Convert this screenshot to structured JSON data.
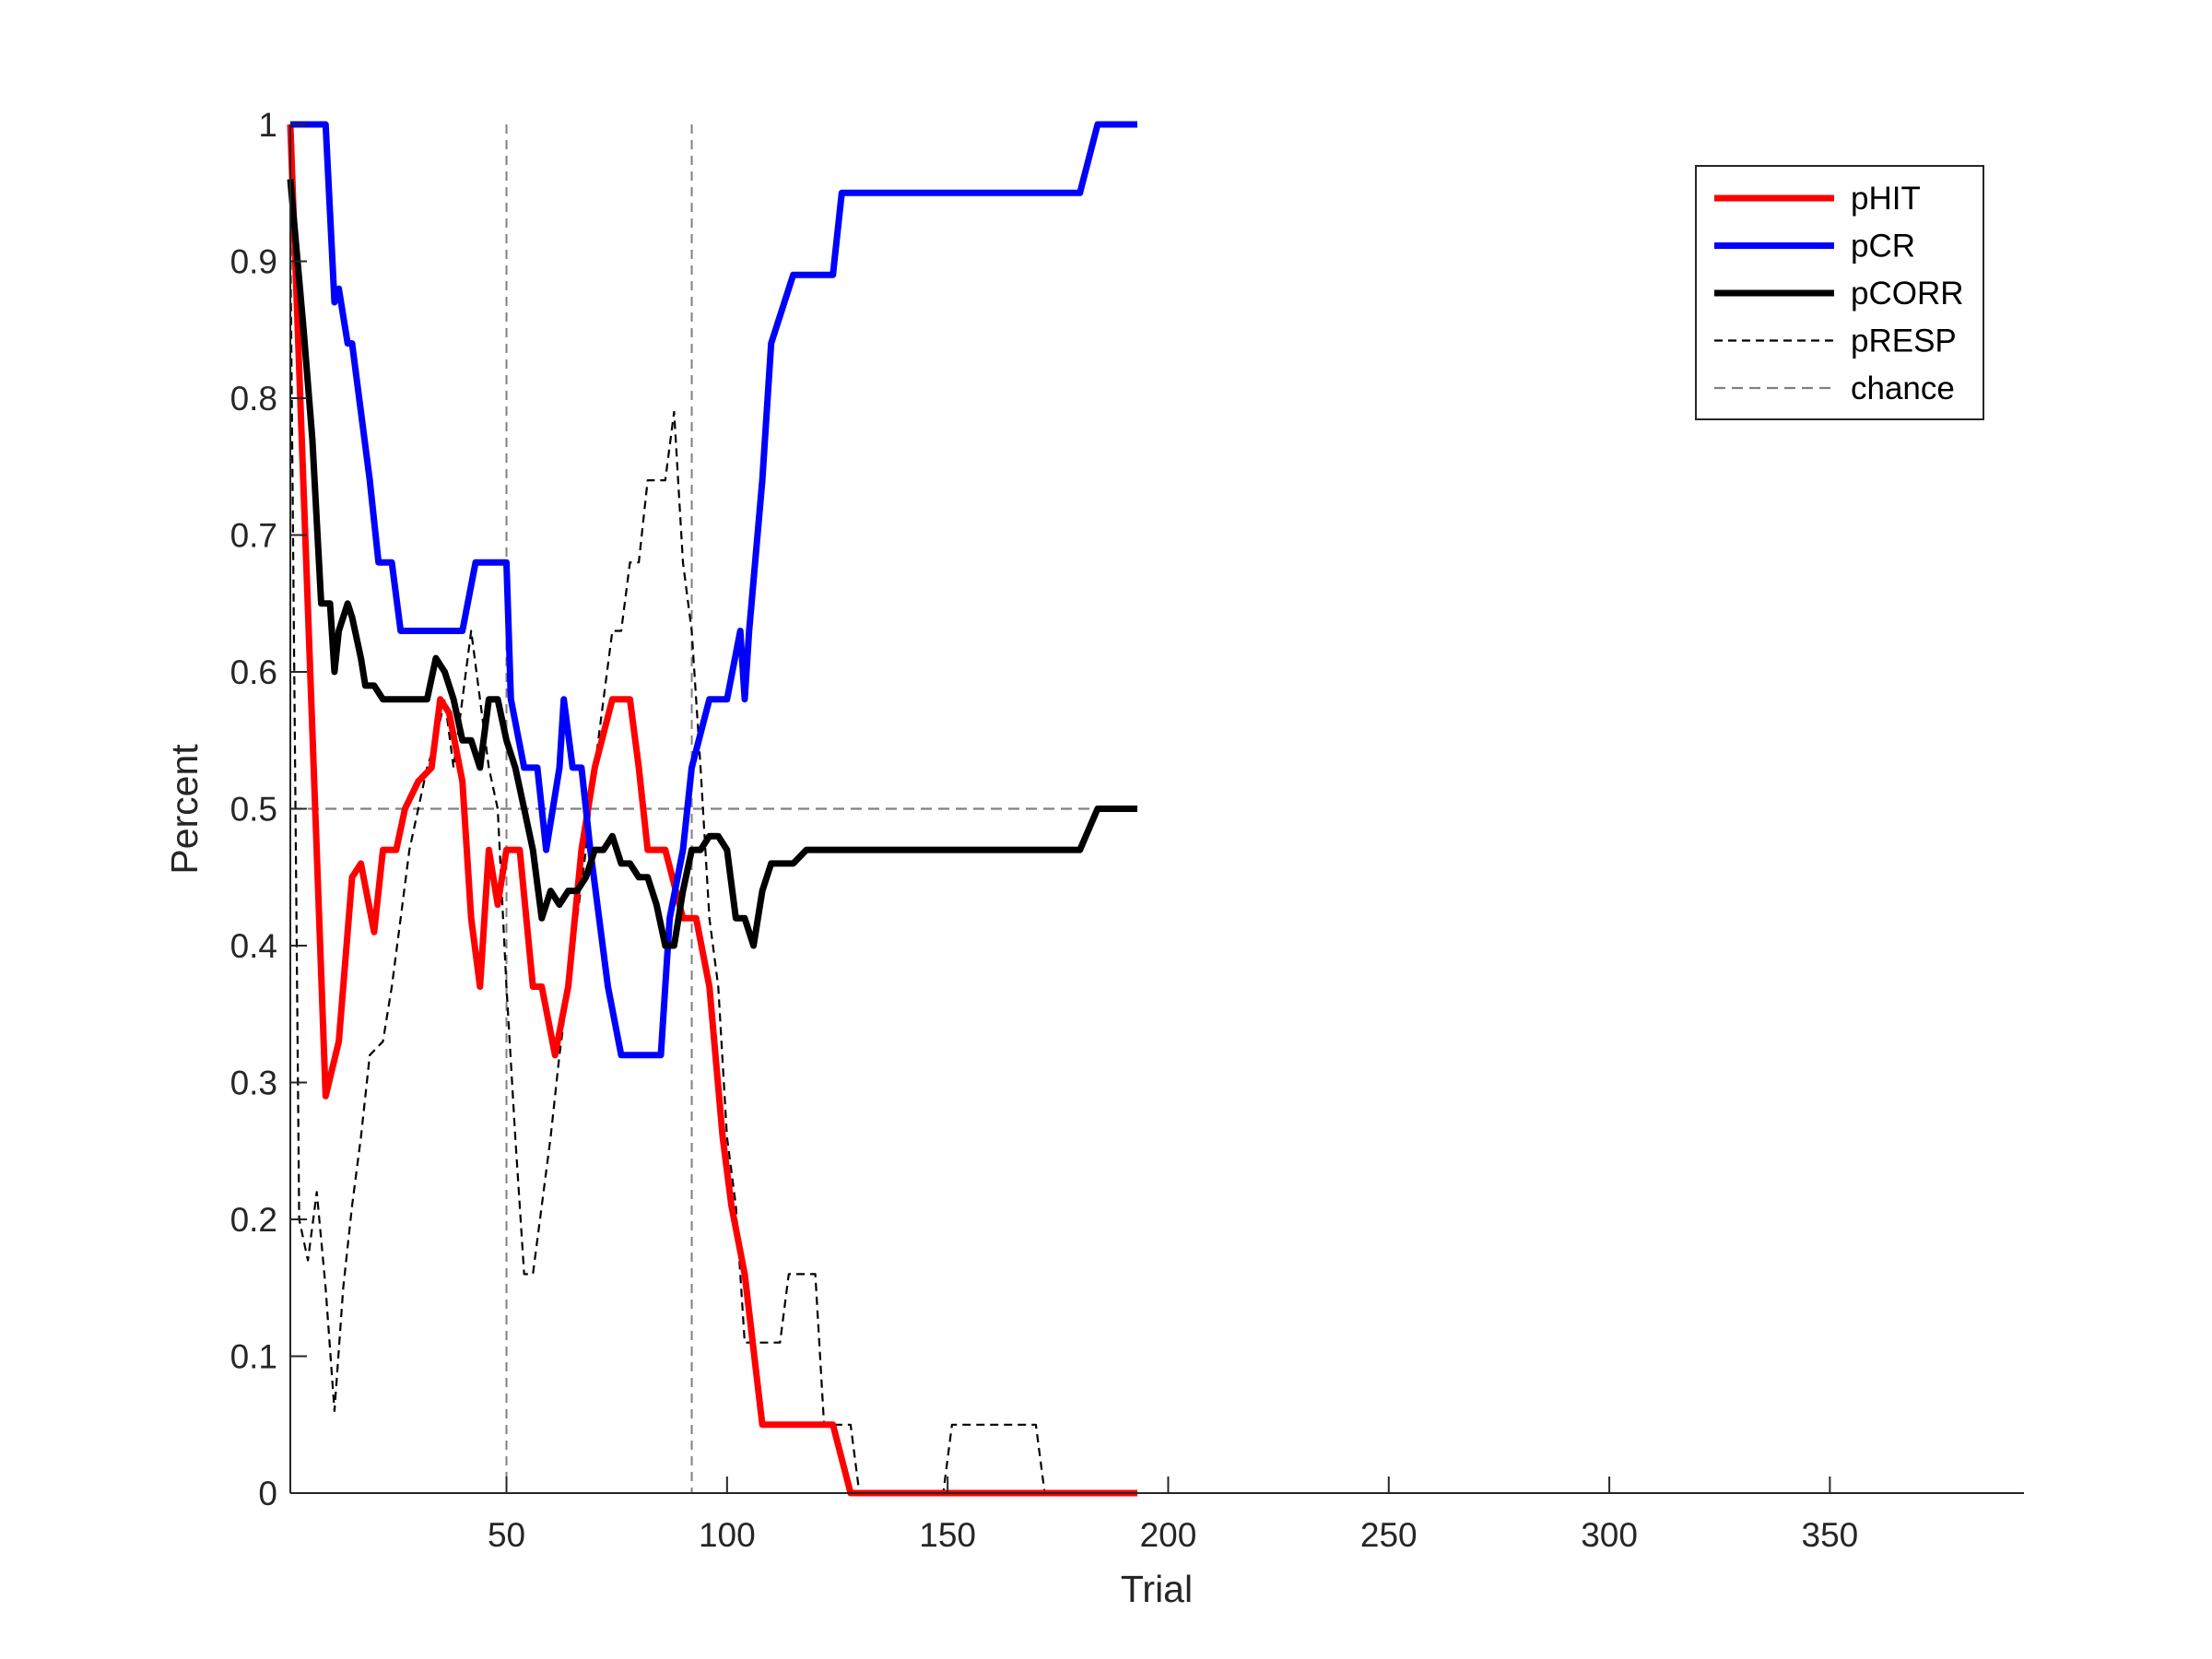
{
  "chart_data": {
    "type": "line",
    "xlabel": "Trial",
    "ylabel": "Percent",
    "xlim": [
      1,
      394
    ],
    "ylim": [
      0,
      1
    ],
    "xticks": [
      50,
      100,
      150,
      200,
      250,
      300,
      350
    ],
    "xtick_labels": [
      "50",
      "100",
      "150",
      "200",
      "250",
      "300",
      "350"
    ],
    "yticks": [
      0,
      0.1,
      0.2,
      0.3,
      0.4,
      0.5,
      0.6,
      0.7,
      0.8,
      0.9,
      1
    ],
    "ytick_labels": [
      "0",
      "0.1",
      "0.2",
      "0.3",
      "0.4",
      "0.5",
      "0.6",
      "0.7",
      "0.8",
      "0.9",
      "1"
    ],
    "grid": false,
    "legend_position": "top-right",
    "vlines": [
      50,
      92
    ],
    "series": [
      {
        "name": "pHIT",
        "color": "#ff0000",
        "style": "solid",
        "x": [
          1,
          9,
          12,
          15,
          17,
          20,
          22,
          25,
          27,
          30,
          33,
          35,
          37,
          40,
          42,
          44,
          46,
          48,
          50,
          53,
          56,
          58,
          61,
          64,
          67,
          70,
          74,
          76,
          78,
          80,
          82,
          84,
          86,
          90,
          93,
          96,
          99,
          101,
          104,
          108,
          112,
          114,
          118,
          120,
          124,
          128,
          132,
          140,
          150,
          160,
          170,
          180,
          193
        ],
        "y": [
          1,
          0.29,
          0.33,
          0.45,
          0.46,
          0.41,
          0.47,
          0.47,
          0.5,
          0.52,
          0.53,
          0.58,
          0.57,
          0.52,
          0.42,
          0.37,
          0.47,
          0.43,
          0.47,
          0.47,
          0.37,
          0.37,
          0.32,
          0.37,
          0.47,
          0.53,
          0.58,
          0.58,
          0.58,
          0.53,
          0.47,
          0.47,
          0.47,
          0.42,
          0.42,
          0.37,
          0.26,
          0.21,
          0.16,
          0.05,
          0.05,
          0.05,
          0.05,
          0.05,
          0.05,
          0.0,
          0.0,
          0.0,
          0.0,
          0.0,
          0.0,
          0.0,
          0.0
        ]
      },
      {
        "name": "pCR",
        "color": "#0000ff",
        "style": "solid",
        "x": [
          1,
          9,
          11,
          12,
          14,
          15,
          17,
          19,
          21,
          24,
          26,
          28,
          40,
          43,
          50,
          51,
          54,
          57,
          59,
          62,
          63,
          65,
          67,
          69,
          73,
          76,
          78,
          80,
          85,
          87,
          90,
          92,
          96,
          100,
          103,
          104,
          105,
          108,
          110,
          115,
          118,
          120,
          124,
          126,
          130,
          180,
          184,
          193
        ],
        "y": [
          1,
          1,
          0.87,
          0.88,
          0.84,
          0.84,
          0.79,
          0.74,
          0.68,
          0.68,
          0.63,
          0.63,
          0.63,
          0.68,
          0.68,
          0.58,
          0.53,
          0.53,
          0.47,
          0.53,
          0.58,
          0.53,
          0.53,
          0.47,
          0.37,
          0.32,
          0.32,
          0.32,
          0.32,
          0.42,
          0.47,
          0.53,
          0.58,
          0.58,
          0.63,
          0.58,
          0.63,
          0.74,
          0.84,
          0.89,
          0.89,
          0.89,
          0.89,
          0.95,
          0.95,
          0.95,
          1,
          1
        ]
      },
      {
        "name": "pCORR",
        "color": "#000000",
        "style": "solid",
        "x": [
          1,
          4,
          6,
          8,
          10,
          11,
          12,
          14,
          15,
          17,
          18,
          20,
          22,
          24,
          26,
          28,
          30,
          32,
          34,
          36,
          38,
          40,
          42,
          44,
          46,
          48,
          50,
          52,
          54,
          56,
          58,
          60,
          62,
          64,
          66,
          68,
          70,
          72,
          74,
          76,
          78,
          80,
          82,
          84,
          86,
          88,
          90,
          92,
          94,
          96,
          98,
          100,
          102,
          104,
          106,
          108,
          110,
          112,
          115,
          118,
          125,
          127,
          130,
          140,
          150,
          160,
          170,
          180,
          184,
          193
        ],
        "y": [
          0.96,
          0.85,
          0.77,
          0.65,
          0.65,
          0.6,
          0.63,
          0.65,
          0.64,
          0.61,
          0.59,
          0.59,
          0.58,
          0.58,
          0.58,
          0.58,
          0.58,
          0.58,
          0.61,
          0.6,
          0.58,
          0.55,
          0.55,
          0.53,
          0.58,
          0.58,
          0.55,
          0.53,
          0.5,
          0.47,
          0.42,
          0.44,
          0.43,
          0.44,
          0.44,
          0.45,
          0.47,
          0.47,
          0.48,
          0.46,
          0.46,
          0.45,
          0.45,
          0.43,
          0.4,
          0.4,
          0.44,
          0.47,
          0.47,
          0.48,
          0.48,
          0.47,
          0.42,
          0.42,
          0.4,
          0.44,
          0.46,
          0.46,
          0.46,
          0.47,
          0.47,
          0.47,
          0.47,
          0.47,
          0.47,
          0.47,
          0.47,
          0.47,
          0.5,
          0.5
        ]
      },
      {
        "name": "pRESP",
        "color": "#000000",
        "style": "dashed",
        "x": [
          1,
          3,
          5,
          7,
          9,
          11,
          13,
          15,
          17,
          19,
          22,
          24,
          26,
          28,
          30,
          32,
          34,
          36,
          38,
          40,
          42,
          44,
          46,
          48,
          50,
          52,
          54,
          56,
          58,
          60,
          62,
          64,
          66,
          68,
          70,
          72,
          74,
          76,
          78,
          80,
          82,
          84,
          86,
          88,
          90,
          92,
          94,
          96,
          98,
          100,
          102,
          104,
          106,
          108,
          110,
          112,
          114,
          116,
          118,
          120,
          122,
          124,
          126,
          128,
          130,
          140,
          149,
          151,
          160,
          170,
          172,
          180,
          193
        ],
        "y": [
          0.92,
          0.2,
          0.17,
          0.22,
          0.15,
          0.06,
          0.15,
          0.21,
          0.26,
          0.32,
          0.33,
          0.37,
          0.42,
          0.47,
          0.5,
          0.53,
          0.55,
          0.58,
          0.53,
          0.58,
          0.63,
          0.58,
          0.53,
          0.5,
          0.37,
          0.26,
          0.16,
          0.16,
          0.21,
          0.26,
          0.32,
          0.37,
          0.42,
          0.47,
          0.53,
          0.58,
          0.63,
          0.63,
          0.68,
          0.68,
          0.74,
          0.74,
          0.74,
          0.79,
          0.68,
          0.63,
          0.53,
          0.42,
          0.37,
          0.26,
          0.21,
          0.11,
          0.11,
          0.11,
          0.11,
          0.11,
          0.16,
          0.16,
          0.16,
          0.16,
          0.05,
          0.05,
          0.05,
          0.05,
          0.0,
          0.0,
          0.0,
          0.05,
          0.05,
          0.05,
          0.0,
          0.0,
          0.0
        ]
      },
      {
        "name": "chance",
        "color": "#808080",
        "style": "dashed",
        "x": [
          1,
          193
        ],
        "y": [
          0.5,
          0.5
        ]
      }
    ]
  }
}
